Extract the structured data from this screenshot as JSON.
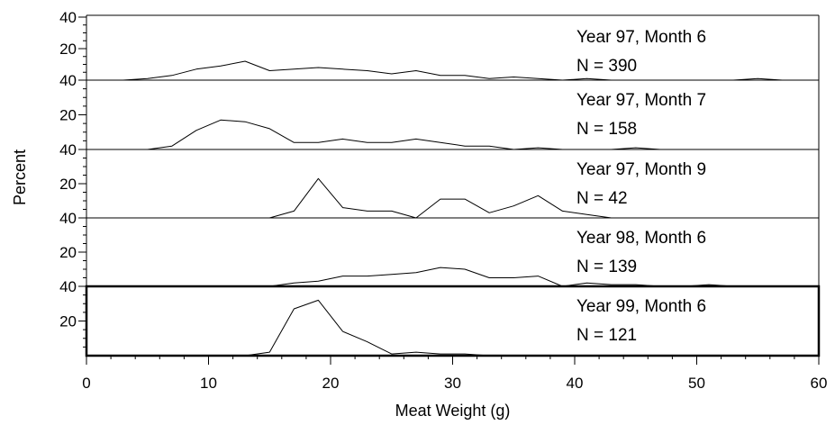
{
  "chart_data": {
    "type": "line",
    "xlabel": "Meat Weight (g)",
    "ylabel": "Percent",
    "xlim": [
      0,
      60
    ],
    "xticks": [
      "0",
      "10",
      "20",
      "30",
      "40",
      "50",
      "60"
    ],
    "ylim": [
      0,
      40
    ],
    "yticks": [
      "20",
      "40"
    ],
    "panels": [
      {
        "label": "Year 97, Month 6",
        "n_label": "N = 390",
        "x": [
          3,
          5,
          7,
          9,
          11,
          13,
          15,
          17,
          19,
          21,
          23,
          25,
          27,
          29,
          31,
          33,
          35,
          37,
          39,
          41,
          43,
          45,
          47,
          49,
          51,
          53,
          55,
          57
        ],
        "y": [
          0,
          1,
          3,
          7,
          9,
          12,
          6,
          7,
          8,
          7,
          6,
          4,
          6,
          3,
          3,
          1,
          2,
          1,
          0,
          1,
          0,
          0,
          0,
          0,
          0,
          0,
          1,
          0
        ]
      },
      {
        "label": "Year 97, Month 7",
        "n_label": "N = 158",
        "x": [
          5,
          7,
          9,
          11,
          13,
          15,
          17,
          19,
          21,
          23,
          25,
          27,
          29,
          31,
          33,
          35,
          37,
          39,
          41,
          43,
          45,
          47
        ],
        "y": [
          0,
          2,
          11,
          17,
          16,
          12,
          4,
          4,
          6,
          4,
          4,
          6,
          4,
          2,
          2,
          0,
          1,
          0,
          0,
          0,
          1,
          0
        ]
      },
      {
        "label": "Year 97, Month 9",
        "n_label": "N = 42",
        "x": [
          15,
          17,
          19,
          21,
          23,
          25,
          27,
          29,
          31,
          33,
          35,
          37,
          39,
          41,
          43
        ],
        "y": [
          0,
          4,
          23,
          6,
          4,
          4,
          0,
          11,
          11,
          3,
          7,
          13,
          4,
          2,
          0
        ]
      },
      {
        "label": "Year 98, Month 6",
        "n_label": "N = 139",
        "x": [
          9,
          11,
          13,
          15,
          17,
          19,
          21,
          23,
          25,
          27,
          29,
          31,
          33,
          35,
          37,
          39,
          41,
          43,
          45,
          47,
          49,
          51,
          53,
          55
        ],
        "y": [
          0,
          0,
          0,
          0,
          2,
          3,
          6,
          6,
          7,
          8,
          11,
          10,
          5,
          5,
          6,
          0,
          2,
          1,
          1,
          0,
          0,
          1,
          0,
          0
        ]
      },
      {
        "label": "Year 99, Month 6",
        "n_label": "N = 121",
        "x": [
          9,
          11,
          13,
          15,
          17,
          19,
          21,
          23,
          25,
          27,
          29,
          31,
          33,
          35,
          37,
          39
        ],
        "y": [
          0,
          0,
          0,
          2,
          27,
          32,
          14,
          8,
          1,
          2,
          1,
          1,
          0,
          0,
          0,
          0
        ]
      }
    ]
  }
}
